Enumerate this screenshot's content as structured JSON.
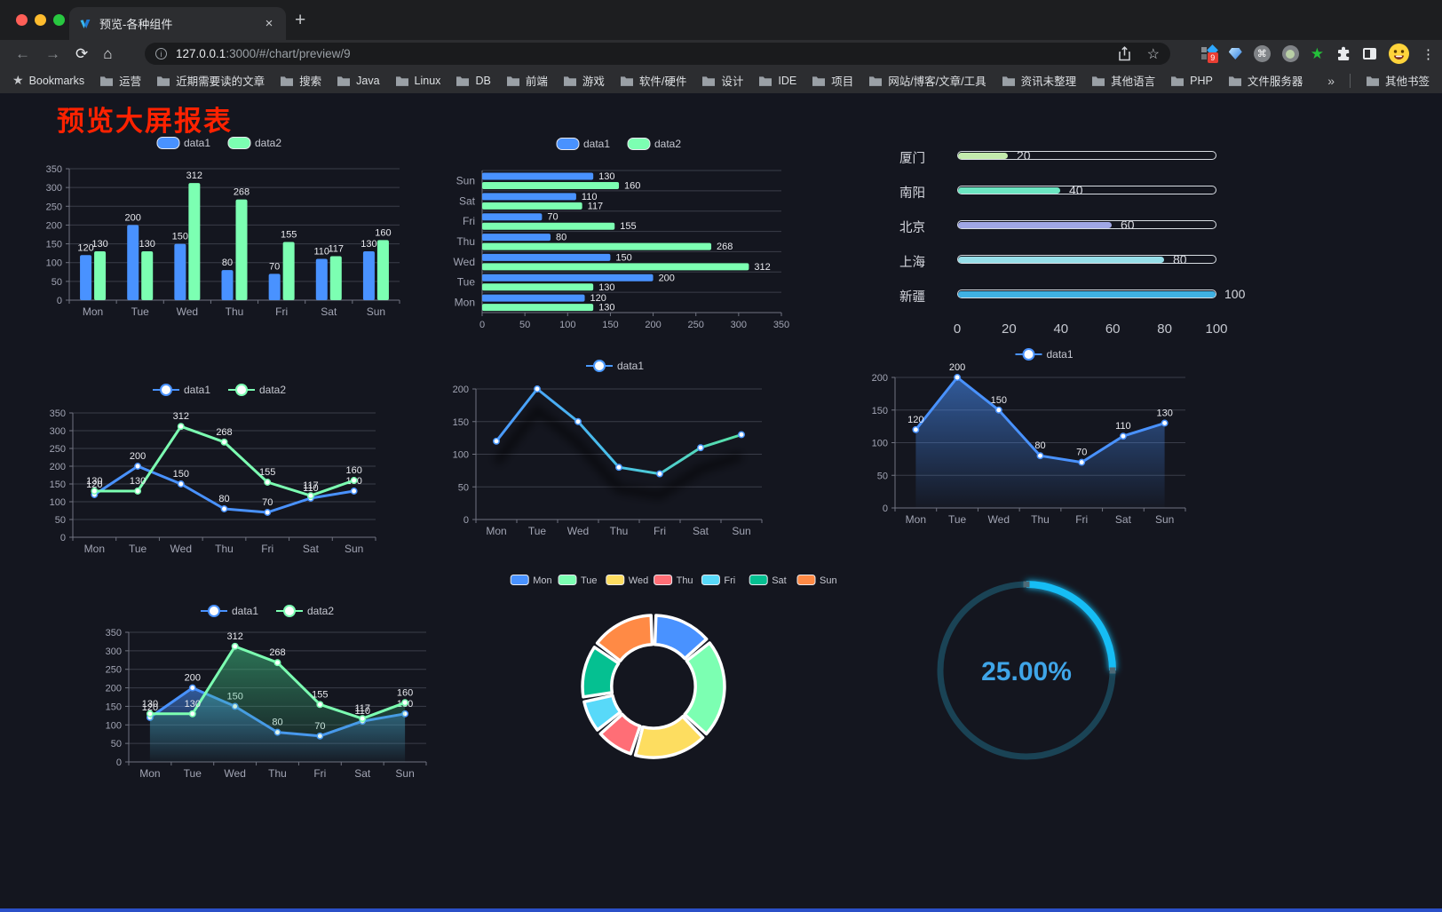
{
  "browser": {
    "traffic_lights": [
      "#ff5f57",
      "#febc2e",
      "#28c840"
    ],
    "tab": {
      "title": "预览-各种组件",
      "close": "×",
      "new_tab": "+"
    },
    "nav": {
      "back": "←",
      "forward": "→",
      "reload": "⟳",
      "home": "⌂"
    },
    "url": {
      "host": "127.0.0.1",
      "rest": ":3000/#/chart/preview/9"
    },
    "actions": {
      "star": "☆",
      "extension_badge": "9",
      "menu": "⋮"
    },
    "bookmarks_bar": {
      "star_item": "Bookmarks",
      "folders": [
        "运营",
        "近期需要读的文章",
        "搜索",
        "Java",
        "Linux",
        "DB",
        "前端",
        "游戏",
        "软件/硬件",
        "设计",
        "IDE",
        "项目",
        "网站/博客/文章/工具",
        "资讯未整理",
        "其他语言",
        "PHP",
        "文件服务器"
      ],
      "overflow": "»",
      "other": "其他书签"
    }
  },
  "page": {
    "title": "预览大屏报表",
    "title_color": "#ff2200",
    "background": "#14161f"
  },
  "chart_data": [
    {
      "id": "bar1",
      "type": "bar",
      "title": "",
      "legend_position": "top",
      "categories": [
        "Mon",
        "Tue",
        "Wed",
        "Thu",
        "Fri",
        "Sat",
        "Sun"
      ],
      "series": [
        {
          "name": "data1",
          "color": "#4992ff",
          "values": [
            120,
            200,
            150,
            80,
            70,
            110,
            130
          ]
        },
        {
          "name": "data2",
          "color": "#7cffb2",
          "values": [
            130,
            130,
            312,
            268,
            155,
            117,
            160
          ]
        }
      ],
      "xlabel": "",
      "ylabel": "",
      "ylim": [
        0,
        350
      ],
      "yticks": [
        0,
        50,
        100,
        150,
        200,
        250,
        300,
        350
      ],
      "grid": true
    },
    {
      "id": "hbar",
      "type": "bar-horizontal",
      "title": "",
      "legend_position": "top",
      "categories_top_to_bottom": [
        "Sun",
        "Sat",
        "Fri",
        "Thu",
        "Wed",
        "Tue",
        "Mon"
      ],
      "series": [
        {
          "name": "data1",
          "color": "#4992ff",
          "values": [
            130,
            110,
            70,
            80,
            150,
            200,
            120
          ]
        },
        {
          "name": "data2",
          "color": "#7cffb2",
          "values": [
            160,
            117,
            155,
            268,
            312,
            130,
            130
          ]
        }
      ],
      "xlim": [
        0,
        350
      ],
      "xticks": [
        0,
        50,
        100,
        150,
        200,
        250,
        300,
        350
      ],
      "grid": true
    },
    {
      "id": "capsule",
      "type": "progress-capsule",
      "title": "",
      "items": [
        {
          "label": "厦门",
          "value": 20,
          "color": "#c4ebad"
        },
        {
          "label": "南阳",
          "value": 40,
          "color": "#6be6c1"
        },
        {
          "label": "北京",
          "value": 60,
          "color": "#a0a7e6"
        },
        {
          "label": "上海",
          "value": 80,
          "color": "#96dee8"
        },
        {
          "label": "新疆",
          "value": 100,
          "color": "#3fb1e3"
        }
      ],
      "max": 100,
      "axis_ticks": [
        0,
        20,
        40,
        60,
        80,
        100
      ]
    },
    {
      "id": "line2",
      "type": "line",
      "title": "",
      "legend_position": "top",
      "categories": [
        "Mon",
        "Tue",
        "Wed",
        "Thu",
        "Fri",
        "Sat",
        "Sun"
      ],
      "series": [
        {
          "name": "data1",
          "color": "#4992ff",
          "values": [
            120,
            200,
            150,
            80,
            70,
            110,
            130
          ]
        },
        {
          "name": "data2",
          "color": "#7cffb2",
          "values": [
            130,
            130,
            312,
            268,
            155,
            117,
            160
          ]
        }
      ],
      "ylim": [
        0,
        350
      ],
      "yticks": [
        0,
        50,
        100,
        150,
        200,
        250,
        300,
        350
      ],
      "point_labels": true,
      "grid": true
    },
    {
      "id": "gradline",
      "type": "line",
      "title": "",
      "legend_position": "top",
      "categories": [
        "Mon",
        "Tue",
        "Wed",
        "Thu",
        "Fri",
        "Sat",
        "Sun"
      ],
      "series": [
        {
          "name": "data1",
          "color": "#4a99ff",
          "gradient": [
            "#4a99ff",
            "#49c3e8",
            "#58e2a5"
          ],
          "values": [
            120,
            200,
            150,
            80,
            70,
            110,
            130
          ]
        }
      ],
      "ylim": [
        0,
        200
      ],
      "yticks": [
        0,
        50,
        100,
        150,
        200
      ],
      "point_labels": false,
      "shadow": true,
      "grid": true
    },
    {
      "id": "area1",
      "type": "area",
      "title": "",
      "legend_position": "top",
      "categories": [
        "Mon",
        "Tue",
        "Wed",
        "Thu",
        "Fri",
        "Sat",
        "Sun"
      ],
      "series": [
        {
          "name": "data1",
          "color": "#4992ff",
          "area_color": "#4992ff",
          "values": [
            120,
            200,
            150,
            80,
            70,
            110,
            130
          ]
        }
      ],
      "ylim": [
        0,
        200
      ],
      "yticks": [
        0,
        50,
        100,
        150,
        200
      ],
      "point_labels": true,
      "grid": true
    },
    {
      "id": "area2",
      "type": "area",
      "title": "",
      "legend_position": "top",
      "categories": [
        "Mon",
        "Tue",
        "Wed",
        "Thu",
        "Fri",
        "Sat",
        "Sun"
      ],
      "series": [
        {
          "name": "data1",
          "color": "#4992ff",
          "area_color": "#4992ff",
          "values": [
            120,
            200,
            150,
            80,
            70,
            110,
            130
          ]
        },
        {
          "name": "data2",
          "color": "#7cffb2",
          "area_color": "#3fbf82",
          "values": [
            130,
            130,
            312,
            268,
            155,
            117,
            160
          ]
        }
      ],
      "ylim": [
        0,
        350
      ],
      "yticks": [
        0,
        50,
        100,
        150,
        200,
        250,
        300,
        350
      ],
      "point_labels": true,
      "grid": true
    },
    {
      "id": "donut",
      "type": "pie",
      "title": "",
      "legend_position": "top",
      "categories": [
        "Mon",
        "Tue",
        "Wed",
        "Thu",
        "Fri",
        "Sat",
        "Sun"
      ],
      "values": [
        120,
        200,
        150,
        80,
        70,
        110,
        130
      ],
      "colors": [
        "#4992ff",
        "#7cffb2",
        "#fddd60",
        "#ff6e76",
        "#58d9f9",
        "#05c091",
        "#ff8a45"
      ],
      "inner_radius_ratio": 0.59,
      "border_color": "#ffffff"
    },
    {
      "id": "gauge",
      "type": "gauge",
      "title": "",
      "value": 25,
      "max": 100,
      "label": "25.00%",
      "arc_color": "#16bdf5",
      "track_color": "#1a4355",
      "text_color": "#3fa5e8"
    }
  ]
}
